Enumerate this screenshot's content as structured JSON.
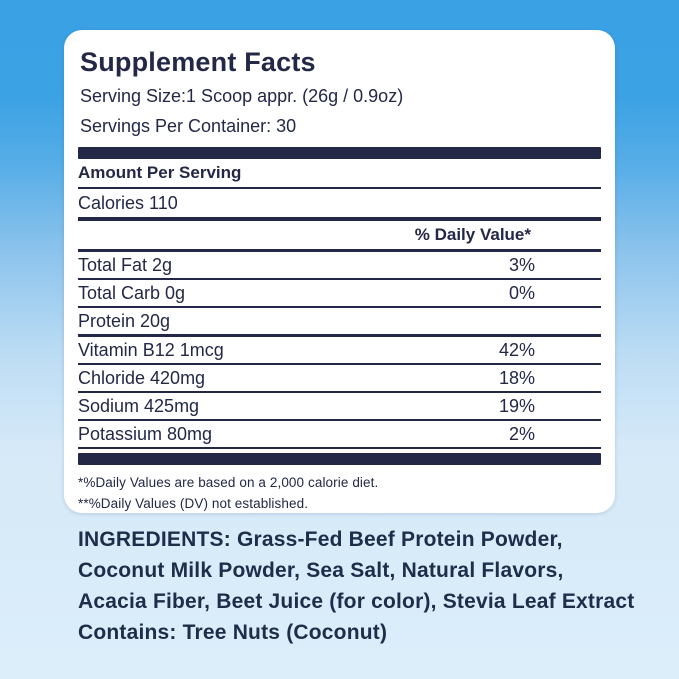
{
  "panel": {
    "title": "Supplement Facts",
    "serving_size": "Serving Size:1 Scoop appr. (26g / 0.9oz)",
    "servings_per_container": "Servings Per Container: 30",
    "amount_per_serving": "Amount Per Serving",
    "calories": "Calories 110",
    "daily_value_header": "% Daily Value*",
    "rows": [
      {
        "name": "Total Fat 2g",
        "pct": "3%"
      },
      {
        "name": "Total Carb 0g",
        "pct": "0%"
      },
      {
        "name": "Protein 20g",
        "pct": ""
      },
      {
        "name": "Vitamin B12 1mcg",
        "pct": "42%"
      },
      {
        "name": "Chloride 420mg",
        "pct": "18%"
      },
      {
        "name": "Sodium 425mg",
        "pct": "19%"
      },
      {
        "name": "Potassium 80mg",
        "pct": "2%"
      }
    ],
    "footnotes": [
      "*%Daily Values are based on a 2,000 calorie diet.",
      "**%Daily Values (DV) not established."
    ]
  },
  "ingredients": {
    "lines": [
      "INGREDIENTS: Grass-Fed Beef Protein Powder,",
      "Coconut Milk Powder, Sea Salt, Natural Flavors,",
      "Acacia Fiber, Beet Juice (for color), Stevia Leaf Extract",
      "Contains: Tree Nuts (Coconut)"
    ]
  },
  "colors": {
    "navy_text": "#232847",
    "background_top": "#3BA2E4",
    "background_bottom": "#DCEEFA",
    "card_background": "#FFFFFF"
  }
}
